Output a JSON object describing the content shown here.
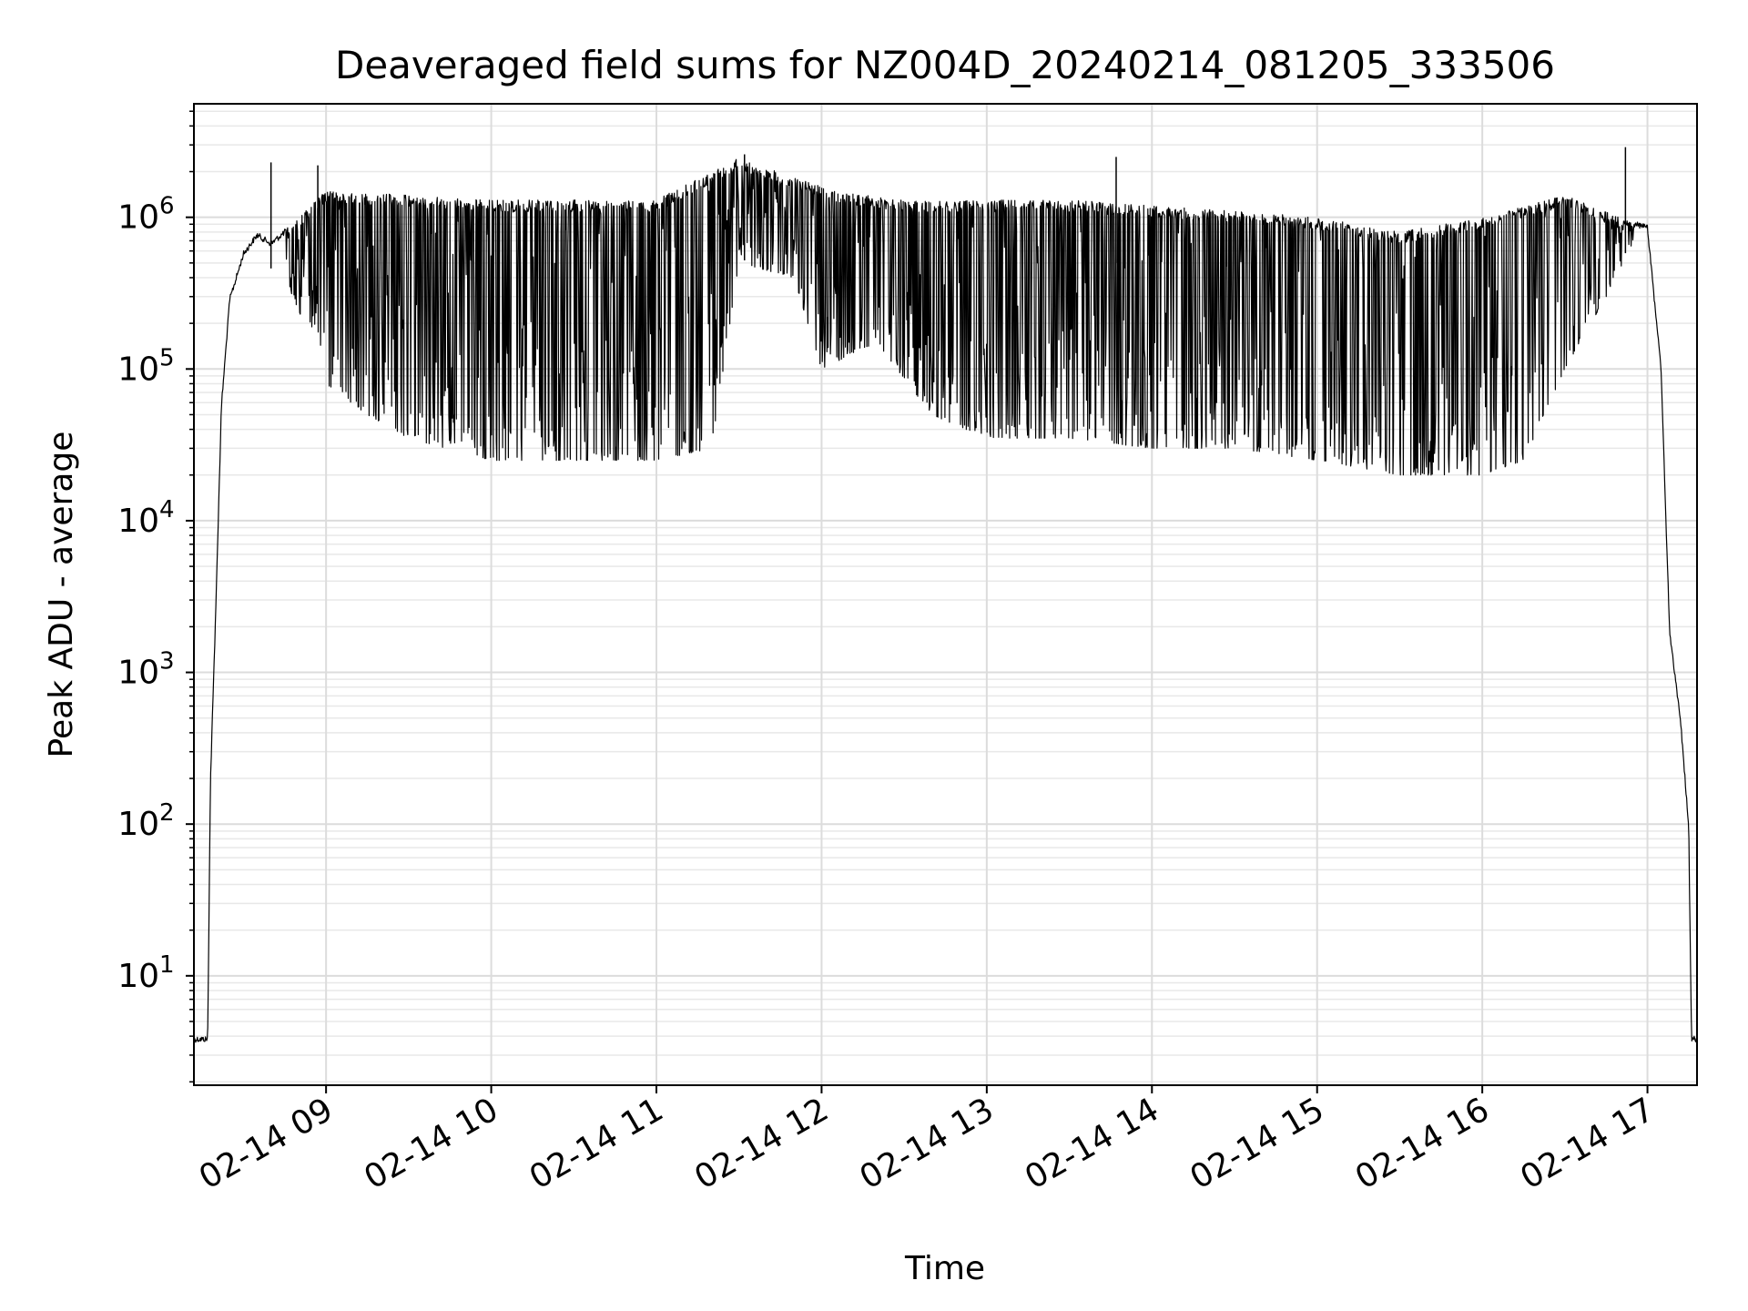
{
  "chart_data": {
    "type": "line",
    "title": "Deaveraged field sums for NZ004D_20240214_081205_333506",
    "xlabel": "Time",
    "ylabel": "Peak ADU - average",
    "xscale": "time",
    "yscale": "log",
    "grid": true,
    "legend": "none",
    "xlim": [
      "2024-02-14 08:12",
      "2024-02-14 17:18"
    ],
    "ylim": [
      1.9,
      5600000
    ],
    "x_ticks": [
      {
        "t": "2024-02-14 09:00",
        "label": "02-14 09"
      },
      {
        "t": "2024-02-14 10:00",
        "label": "02-14 10"
      },
      {
        "t": "2024-02-14 11:00",
        "label": "02-14 11"
      },
      {
        "t": "2024-02-14 12:00",
        "label": "02-14 12"
      },
      {
        "t": "2024-02-14 13:00",
        "label": "02-14 13"
      },
      {
        "t": "2024-02-14 14:00",
        "label": "02-14 14"
      },
      {
        "t": "2024-02-14 15:00",
        "label": "02-14 15"
      },
      {
        "t": "2024-02-14 16:00",
        "label": "02-14 16"
      },
      {
        "t": "2024-02-14 17:00",
        "label": "02-14 17"
      }
    ],
    "y_ticks": [
      {
        "value": 10,
        "base": "10",
        "exp": "1"
      },
      {
        "value": 100,
        "base": "10",
        "exp": "2"
      },
      {
        "value": 1000,
        "base": "10",
        "exp": "3"
      },
      {
        "value": 10000,
        "base": "10",
        "exp": "4"
      },
      {
        "value": 100000,
        "base": "10",
        "exp": "5"
      },
      {
        "value": 1000000,
        "base": "10",
        "exp": "6"
      }
    ],
    "series": [
      {
        "color": "#000000",
        "upper_envelope": [
          {
            "t": "2024-02-14 08:12",
            "y": 4
          },
          {
            "t": "2024-02-14 08:17",
            "y": 4
          },
          {
            "t": "2024-02-14 08:18",
            "y": 200
          },
          {
            "t": "2024-02-14 08:20",
            "y": 3000
          },
          {
            "t": "2024-02-14 08:22",
            "y": 60000
          },
          {
            "t": "2024-02-14 08:25",
            "y": 300000
          },
          {
            "t": "2024-02-14 08:30",
            "y": 600000
          },
          {
            "t": "2024-02-14 08:35",
            "y": 800000
          },
          {
            "t": "2024-02-14 08:40",
            "y": 700000
          },
          {
            "t": "2024-02-14 08:50",
            "y": 1000000
          },
          {
            "t": "2024-02-14 09:00",
            "y": 1500000
          },
          {
            "t": "2024-02-14 10:00",
            "y": 1300000
          },
          {
            "t": "2024-02-14 11:00",
            "y": 1300000
          },
          {
            "t": "2024-02-14 11:30",
            "y": 2500000
          },
          {
            "t": "2024-02-14 11:45",
            "y": 2000000
          },
          {
            "t": "2024-02-14 12:05",
            "y": 1500000
          },
          {
            "t": "2024-02-14 12:30",
            "y": 1300000
          },
          {
            "t": "2024-02-14 13:00",
            "y": 1300000
          },
          {
            "t": "2024-02-14 13:30",
            "y": 1300000
          },
          {
            "t": "2024-02-14 14:00",
            "y": 1200000
          },
          {
            "t": "2024-02-14 14:30",
            "y": 1100000
          },
          {
            "t": "2024-02-14 15:00",
            "y": 1000000
          },
          {
            "t": "2024-02-14 15:30",
            "y": 800000
          },
          {
            "t": "2024-02-14 16:00",
            "y": 1000000
          },
          {
            "t": "2024-02-14 16:30",
            "y": 1400000
          },
          {
            "t": "2024-02-14 16:50",
            "y": 1000000
          },
          {
            "t": "2024-02-14 17:00",
            "y": 900000
          },
          {
            "t": "2024-02-14 17:05",
            "y": 100000
          },
          {
            "t": "2024-02-14 17:08",
            "y": 2000
          },
          {
            "t": "2024-02-14 17:12",
            "y": 500
          },
          {
            "t": "2024-02-14 17:15",
            "y": 100
          },
          {
            "t": "2024-02-14 17:16",
            "y": 4
          },
          {
            "t": "2024-02-14 17:18",
            "y": 4
          }
        ],
        "lower_envelope": [
          {
            "t": "2024-02-14 08:45",
            "y": 400000
          },
          {
            "t": "2024-02-14 08:55",
            "y": 150000
          },
          {
            "t": "2024-02-14 09:00",
            "y": 80000
          },
          {
            "t": "2024-02-14 09:15",
            "y": 50000
          },
          {
            "t": "2024-02-14 09:30",
            "y": 35000
          },
          {
            "t": "2024-02-14 10:00",
            "y": 25000
          },
          {
            "t": "2024-02-14 10:30",
            "y": 25000
          },
          {
            "t": "2024-02-14 11:00",
            "y": 25000
          },
          {
            "t": "2024-02-14 11:20",
            "y": 30000
          },
          {
            "t": "2024-02-14 11:30",
            "y": 500000
          },
          {
            "t": "2024-02-14 11:50",
            "y": 400000
          },
          {
            "t": "2024-02-14 12:00",
            "y": 100000
          },
          {
            "t": "2024-02-14 12:20",
            "y": 150000
          },
          {
            "t": "2024-02-14 12:40",
            "y": 50000
          },
          {
            "t": "2024-02-14 13:00",
            "y": 35000
          },
          {
            "t": "2024-02-14 13:30",
            "y": 35000
          },
          {
            "t": "2024-02-14 14:00",
            "y": 30000
          },
          {
            "t": "2024-02-14 14:30",
            "y": 30000
          },
          {
            "t": "2024-02-14 15:00",
            "y": 25000
          },
          {
            "t": "2024-02-14 15:30",
            "y": 20000
          },
          {
            "t": "2024-02-14 16:00",
            "y": 20000
          },
          {
            "t": "2024-02-14 16:15",
            "y": 25000
          },
          {
            "t": "2024-02-14 16:30",
            "y": 100000
          },
          {
            "t": "2024-02-14 16:45",
            "y": 300000
          },
          {
            "t": "2024-02-14 16:55",
            "y": 700000
          }
        ],
        "spikes": [
          {
            "t": "2024-02-14 08:40",
            "y": 2300000
          },
          {
            "t": "2024-02-14 08:57",
            "y": 2200000
          },
          {
            "t": "2024-02-14 11:32",
            "y": 2600000
          },
          {
            "t": "2024-02-14 13:47",
            "y": 2500000
          },
          {
            "t": "2024-02-14 16:52",
            "y": 2900000
          }
        ]
      }
    ]
  }
}
